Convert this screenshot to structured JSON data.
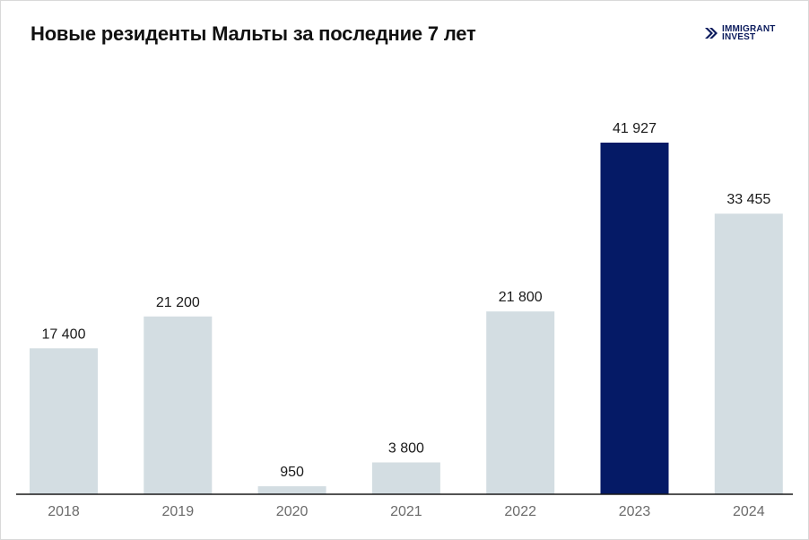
{
  "title": "Новые резиденты Мальты за последние 7 лет",
  "logo": {
    "line1": "IMMIGRANT",
    "line2": "INVEST"
  },
  "colors": {
    "bar": "#d3dde2",
    "highlight": "#051a66",
    "axis": "#1a1a1a",
    "brand": "#0a1a5c"
  },
  "chart_data": {
    "type": "bar",
    "title": "Новые резиденты Мальты за последние 7 лет",
    "categories": [
      "2018",
      "2019",
      "2020",
      "2021",
      "2022",
      "2023",
      "2024"
    ],
    "values": [
      17400,
      21200,
      950,
      3800,
      21800,
      41927,
      33455
    ],
    "data_labels": [
      "17 400",
      "21 200",
      "950",
      "3 800",
      "21 800",
      "41 927",
      "33 455"
    ],
    "highlight_index": 5,
    "ylim": [
      0,
      41927
    ],
    "grid": false,
    "legend": "none"
  }
}
